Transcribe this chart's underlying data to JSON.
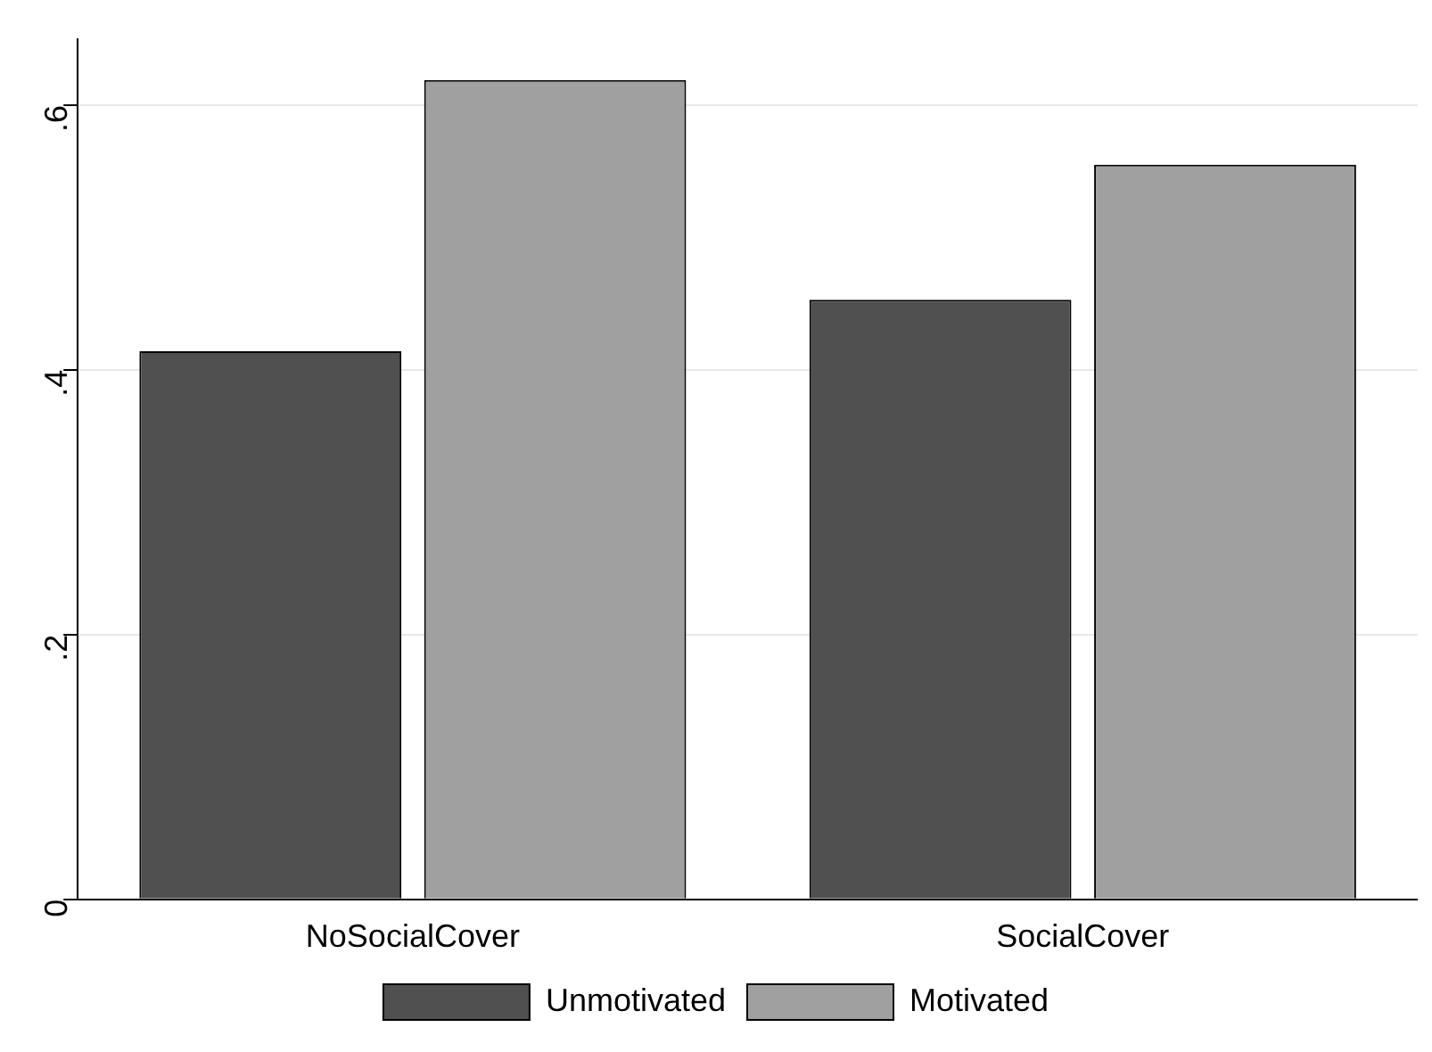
{
  "chart_data": {
    "type": "bar",
    "categories": [
      "NoSocialCover",
      "SocialCover"
    ],
    "series": [
      {
        "name": "Unmotivated",
        "color": "#505050",
        "values": [
          0.414,
          0.453
        ]
      },
      {
        "name": "Motivated",
        "color": "#a0a0a0",
        "values": [
          0.619,
          0.555
        ]
      }
    ],
    "ylim": [
      0,
      0.65
    ],
    "yticks": [
      {
        "value": 0,
        "label": "0"
      },
      {
        "value": 0.2,
        "label": ".2"
      },
      {
        "value": 0.4,
        "label": ".4"
      },
      {
        "value": 0.6,
        "label": ".6"
      }
    ],
    "grid": "y",
    "legend": "bottom"
  }
}
